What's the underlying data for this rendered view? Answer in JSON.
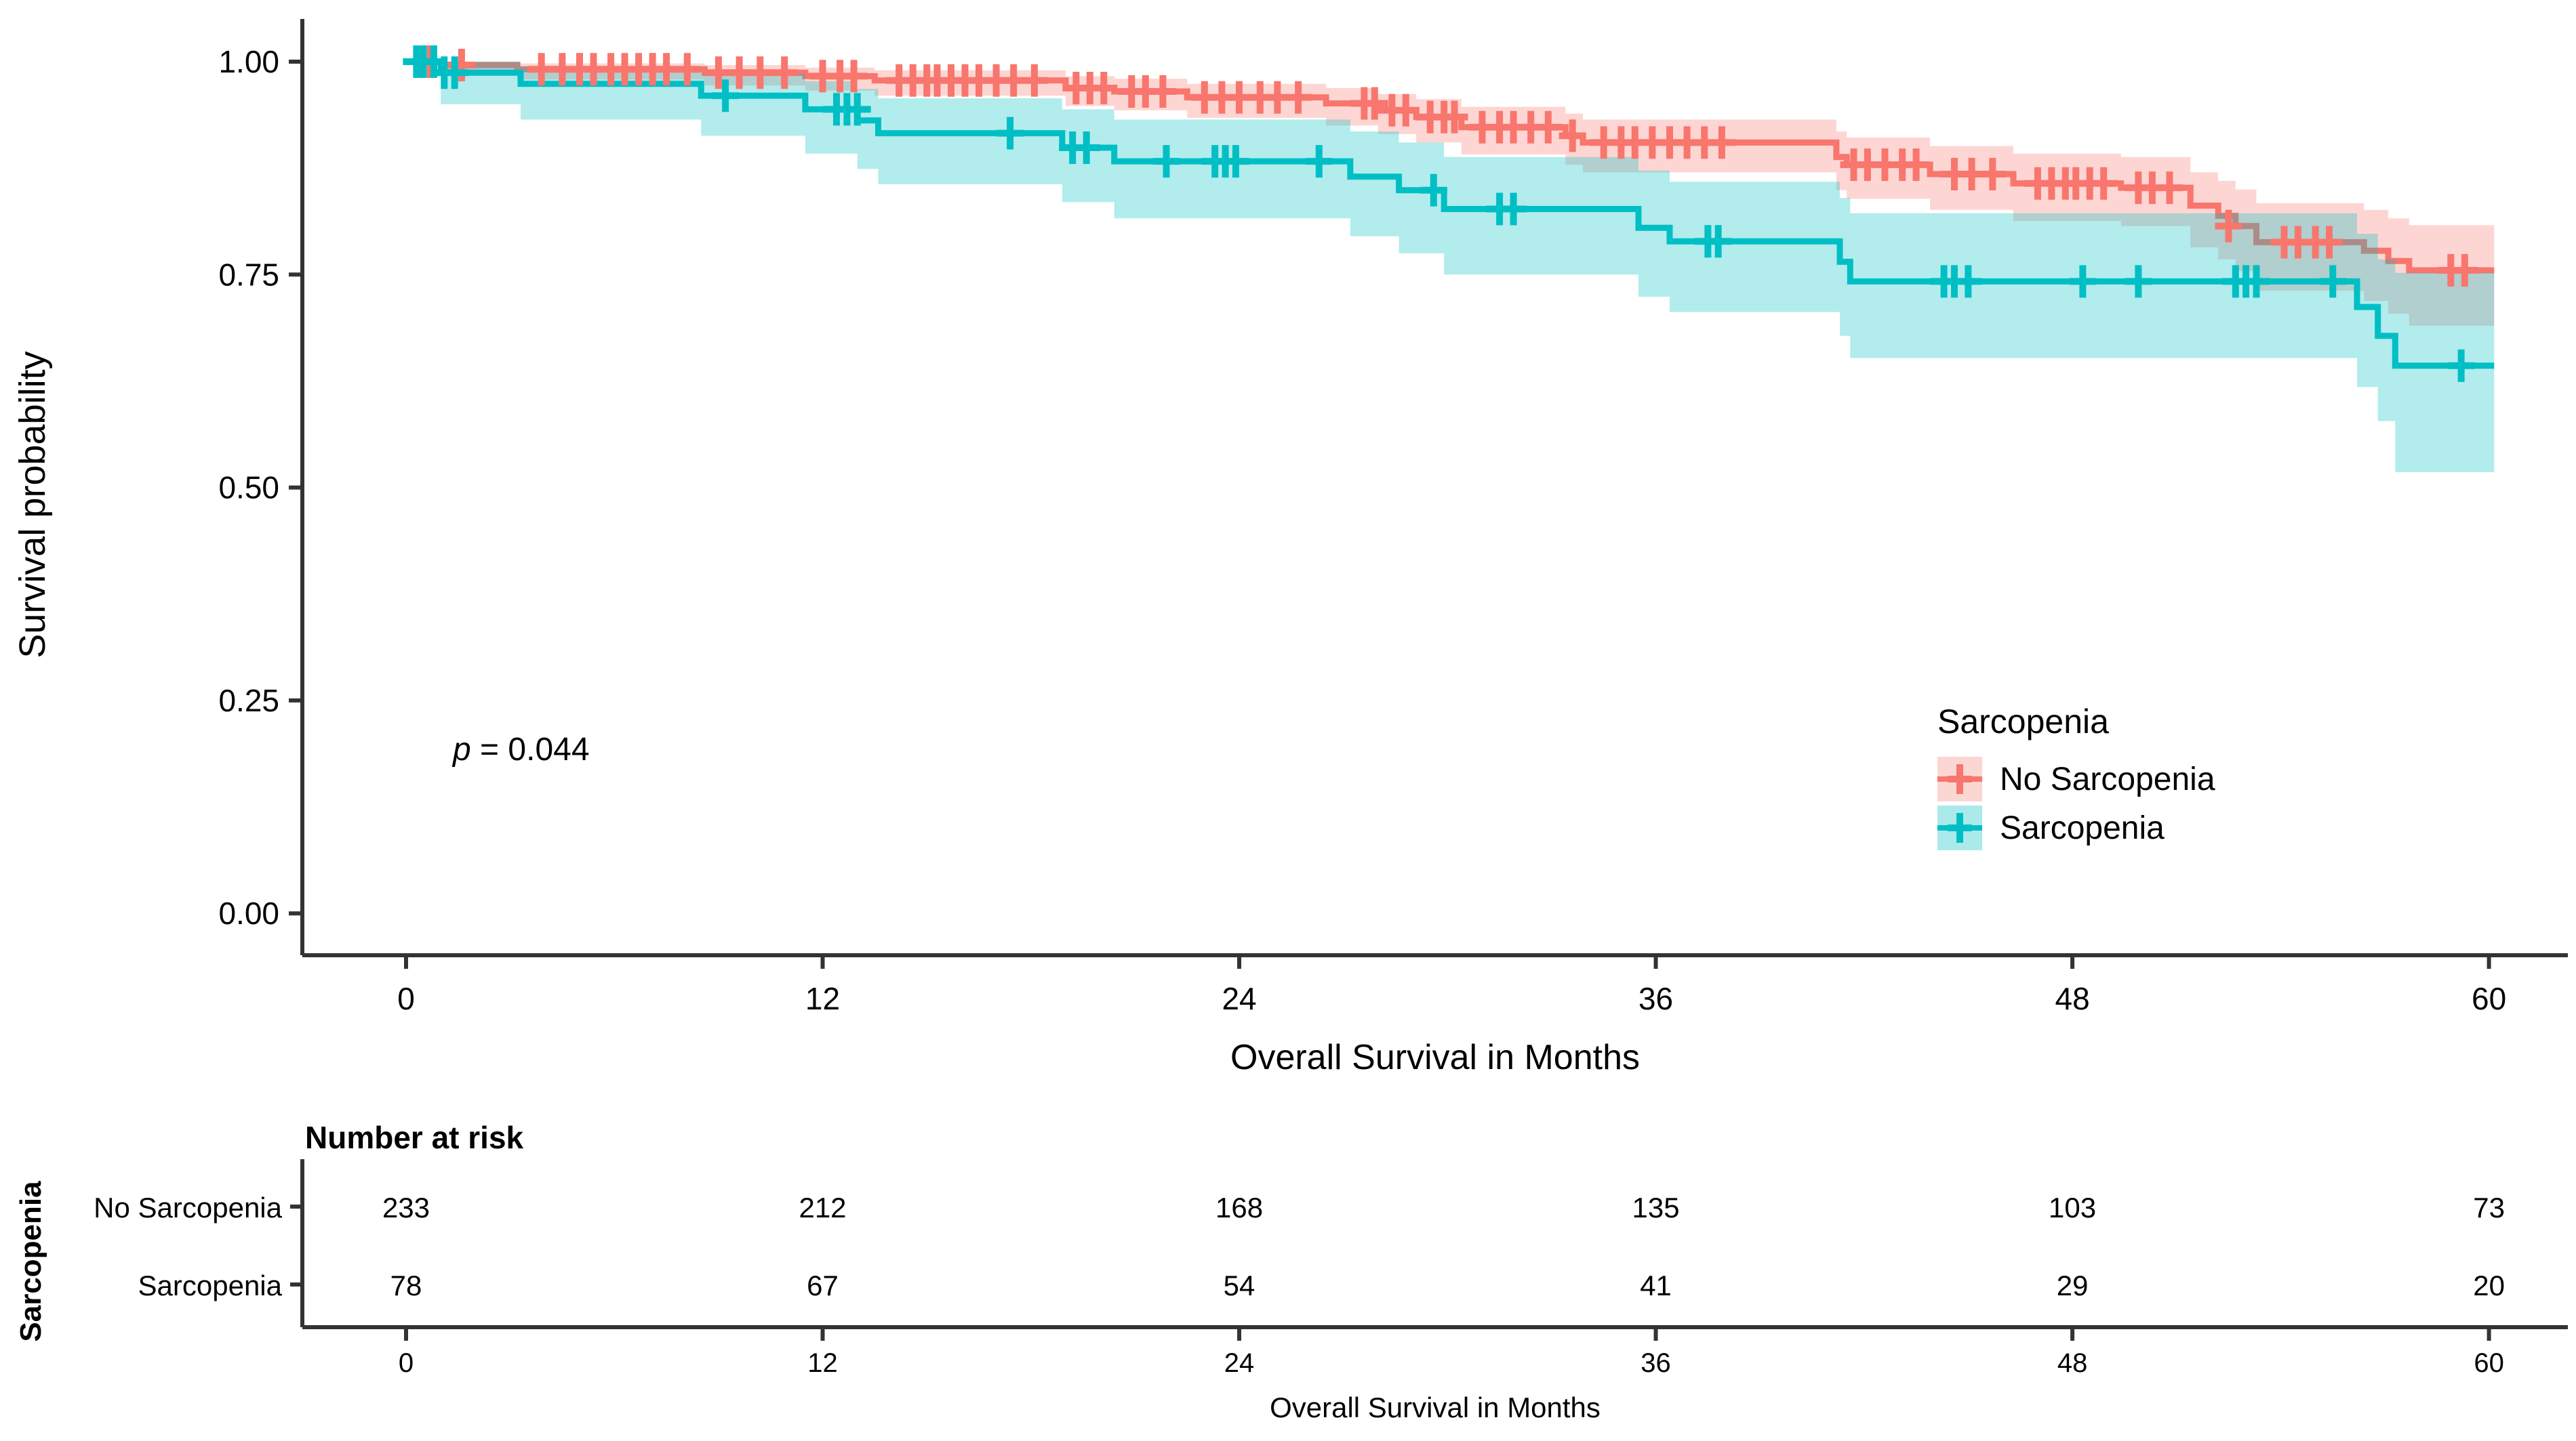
{
  "figure_type": "kaplan-meier-survival-plot",
  "colors": {
    "no_sarcopenia_line": "#F8766D",
    "sarcopenia_line": "#00BFC4",
    "no_sarcopenia_band_solid": "#FBD7D3",
    "sarcopenia_band_solid": "#ABEAEB",
    "band_opacity": 0.3,
    "axis": "#333333",
    "text": "#000000"
  },
  "chart_data": {
    "type": "line",
    "subtype": "kaplan_meier_step_with_confidence_bands",
    "title": "",
    "xlabel": "Overall Survival in Months",
    "ylabel": "Survival probability",
    "xlim": [
      0,
      60.15
    ],
    "ylim": [
      0,
      1
    ],
    "grid": false,
    "x_ticks": [
      "0",
      "12",
      "24",
      "36",
      "48",
      "60"
    ],
    "x_tick_values": [
      0,
      12,
      24,
      36,
      48,
      60
    ],
    "y_ticks": [
      "1.00",
      "0.75",
      "0.50",
      "0.25",
      "0.00"
    ],
    "y_tick_values": [
      1.0,
      0.75,
      0.5,
      0.25,
      0.0
    ],
    "p_value": {
      "prefix": "p",
      "rest": " = 0.044"
    },
    "legend": {
      "title": "Sarcopenia",
      "position": "inside-right",
      "entries": [
        {
          "label": "No Sarcopenia"
        },
        {
          "label": "Sarcopenia"
        }
      ]
    },
    "series": [
      {
        "name": "No Sarcopenia",
        "color": "#F8766D",
        "steps": [
          [
            0,
            1.0
          ],
          [
            1.0,
            0.996
          ],
          [
            3.2,
            0.991
          ],
          [
            8.6,
            0.987
          ],
          [
            11.5,
            0.983
          ],
          [
            13.5,
            0.978
          ],
          [
            19.0,
            0.969
          ],
          [
            20.4,
            0.965
          ],
          [
            22.5,
            0.958
          ],
          [
            26.5,
            0.951
          ],
          [
            28.0,
            0.943
          ],
          [
            29.1,
            0.935
          ],
          [
            30.4,
            0.923
          ],
          [
            33.4,
            0.913
          ],
          [
            33.9,
            0.905
          ],
          [
            41.2,
            0.888
          ],
          [
            41.5,
            0.879
          ],
          [
            43.9,
            0.868
          ],
          [
            46.3,
            0.857
          ],
          [
            49.4,
            0.852
          ],
          [
            51.4,
            0.831
          ],
          [
            52.2,
            0.819
          ],
          [
            52.7,
            0.807
          ],
          [
            53.3,
            0.788
          ],
          [
            56.4,
            0.778
          ],
          [
            57.1,
            0.766
          ],
          [
            57.7,
            0.755
          ]
        ],
        "censors": [
          [
            0.4,
            1.0
          ],
          [
            0.7,
            1.0
          ],
          [
            1.6,
            0.996
          ],
          [
            3.9,
            0.991
          ],
          [
            4.5,
            0.991
          ],
          [
            5.0,
            0.991
          ],
          [
            5.4,
            0.991
          ],
          [
            5.9,
            0.991
          ],
          [
            6.3,
            0.991
          ],
          [
            6.7,
            0.991
          ],
          [
            7.1,
            0.991
          ],
          [
            7.5,
            0.991
          ],
          [
            8.1,
            0.991
          ],
          [
            9.0,
            0.987
          ],
          [
            9.6,
            0.987
          ],
          [
            10.2,
            0.987
          ],
          [
            10.9,
            0.987
          ],
          [
            12.0,
            0.983
          ],
          [
            12.5,
            0.983
          ],
          [
            12.9,
            0.983
          ],
          [
            14.2,
            0.978
          ],
          [
            14.6,
            0.978
          ],
          [
            15.0,
            0.978
          ],
          [
            15.3,
            0.978
          ],
          [
            15.7,
            0.978
          ],
          [
            16.1,
            0.978
          ],
          [
            16.5,
            0.978
          ],
          [
            17.0,
            0.978
          ],
          [
            17.5,
            0.978
          ],
          [
            18.1,
            0.978
          ],
          [
            19.3,
            0.969
          ],
          [
            19.7,
            0.969
          ],
          [
            20.1,
            0.969
          ],
          [
            20.9,
            0.965
          ],
          [
            21.3,
            0.965
          ],
          [
            21.8,
            0.965
          ],
          [
            23.0,
            0.958
          ],
          [
            23.5,
            0.958
          ],
          [
            24.0,
            0.958
          ],
          [
            24.6,
            0.958
          ],
          [
            25.1,
            0.958
          ],
          [
            25.7,
            0.958
          ],
          [
            27.6,
            0.951
          ],
          [
            27.9,
            0.951
          ],
          [
            28.4,
            0.943
          ],
          [
            28.8,
            0.943
          ],
          [
            29.5,
            0.935
          ],
          [
            29.9,
            0.935
          ],
          [
            30.2,
            0.935
          ],
          [
            31.0,
            0.923
          ],
          [
            31.5,
            0.923
          ],
          [
            31.9,
            0.923
          ],
          [
            32.4,
            0.923
          ],
          [
            32.9,
            0.923
          ],
          [
            33.6,
            0.913
          ],
          [
            34.5,
            0.905
          ],
          [
            35.0,
            0.905
          ],
          [
            35.4,
            0.905
          ],
          [
            35.9,
            0.905
          ],
          [
            36.4,
            0.905
          ],
          [
            36.9,
            0.905
          ],
          [
            37.4,
            0.905
          ],
          [
            37.9,
            0.905
          ],
          [
            41.7,
            0.879
          ],
          [
            42.1,
            0.879
          ],
          [
            42.6,
            0.879
          ],
          [
            43.1,
            0.879
          ],
          [
            43.5,
            0.879
          ],
          [
            44.6,
            0.868
          ],
          [
            45.1,
            0.868
          ],
          [
            45.7,
            0.868
          ],
          [
            47.0,
            0.857
          ],
          [
            47.4,
            0.857
          ],
          [
            47.8,
            0.857
          ],
          [
            48.1,
            0.857
          ],
          [
            48.5,
            0.857
          ],
          [
            48.9,
            0.857
          ],
          [
            49.9,
            0.852
          ],
          [
            50.3,
            0.852
          ],
          [
            50.8,
            0.852
          ],
          [
            52.5,
            0.807
          ],
          [
            54.1,
            0.788
          ],
          [
            54.5,
            0.788
          ],
          [
            55.0,
            0.788
          ],
          [
            55.4,
            0.788
          ],
          [
            58.9,
            0.755
          ],
          [
            59.3,
            0.755
          ]
        ],
        "band": [
          [
            0,
            1.0,
            1.0
          ],
          [
            1.0,
            0.987,
            1.0
          ],
          [
            3.2,
            0.979,
            0.998
          ],
          [
            8.6,
            0.972,
            0.996
          ],
          [
            11.5,
            0.966,
            0.993
          ],
          [
            13.5,
            0.96,
            0.99
          ],
          [
            19.0,
            0.948,
            0.983
          ],
          [
            20.4,
            0.943,
            0.98
          ],
          [
            22.5,
            0.934,
            0.974
          ],
          [
            26.5,
            0.925,
            0.969
          ],
          [
            28.0,
            0.915,
            0.962
          ],
          [
            29.1,
            0.905,
            0.956
          ],
          [
            30.4,
            0.891,
            0.947
          ],
          [
            33.4,
            0.879,
            0.939
          ],
          [
            33.9,
            0.87,
            0.932
          ],
          [
            41.2,
            0.849,
            0.918
          ],
          [
            41.5,
            0.839,
            0.911
          ],
          [
            43.9,
            0.826,
            0.901
          ],
          [
            46.3,
            0.813,
            0.892
          ],
          [
            49.4,
            0.807,
            0.888
          ],
          [
            51.4,
            0.782,
            0.87
          ],
          [
            52.2,
            0.768,
            0.86
          ],
          [
            52.7,
            0.754,
            0.85
          ],
          [
            53.3,
            0.731,
            0.834
          ],
          [
            56.4,
            0.719,
            0.826
          ],
          [
            57.1,
            0.704,
            0.816
          ],
          [
            57.7,
            0.69,
            0.808
          ]
        ]
      },
      {
        "name": "Sarcopenia",
        "color": "#00BFC4",
        "steps": [
          [
            0,
            1.0
          ],
          [
            1.0,
            0.987
          ],
          [
            3.3,
            0.974
          ],
          [
            8.5,
            0.96
          ],
          [
            11.5,
            0.944
          ],
          [
            13.0,
            0.931
          ],
          [
            13.6,
            0.916
          ],
          [
            18.9,
            0.899
          ],
          [
            20.4,
            0.883
          ],
          [
            27.2,
            0.865
          ],
          [
            28.6,
            0.849
          ],
          [
            29.9,
            0.827
          ],
          [
            35.5,
            0.805
          ],
          [
            36.4,
            0.789
          ],
          [
            41.3,
            0.765
          ],
          [
            41.6,
            0.742
          ],
          [
            56.2,
            0.712
          ],
          [
            56.8,
            0.678
          ],
          [
            57.3,
            0.643
          ]
        ],
        "censors": [
          [
            0.3,
            1.0
          ],
          [
            0.5,
            1.0
          ],
          [
            0.8,
            1.0
          ],
          [
            1.1,
            0.987
          ],
          [
            1.4,
            0.987
          ],
          [
            9.2,
            0.96
          ],
          [
            12.4,
            0.944
          ],
          [
            12.7,
            0.944
          ],
          [
            13.0,
            0.944
          ],
          [
            17.4,
            0.916
          ],
          [
            19.2,
            0.899
          ],
          [
            19.6,
            0.899
          ],
          [
            21.9,
            0.883
          ],
          [
            23.3,
            0.883
          ],
          [
            23.6,
            0.883
          ],
          [
            23.9,
            0.883
          ],
          [
            26.3,
            0.883
          ],
          [
            29.6,
            0.849
          ],
          [
            31.5,
            0.827
          ],
          [
            31.9,
            0.827
          ],
          [
            37.5,
            0.789
          ],
          [
            37.8,
            0.789
          ],
          [
            44.3,
            0.742
          ],
          [
            44.6,
            0.742
          ],
          [
            45.0,
            0.742
          ],
          [
            48.3,
            0.742
          ],
          [
            49.9,
            0.742
          ],
          [
            52.7,
            0.742
          ],
          [
            53.0,
            0.742
          ],
          [
            53.3,
            0.742
          ],
          [
            55.5,
            0.742
          ],
          [
            59.2,
            0.643
          ]
        ],
        "band": [
          [
            0,
            1.0,
            1.0
          ],
          [
            1.0,
            0.95,
            1.0
          ],
          [
            3.3,
            0.932,
            0.994
          ],
          [
            8.5,
            0.913,
            0.986
          ],
          [
            11.5,
            0.892,
            0.977
          ],
          [
            13.0,
            0.874,
            0.968
          ],
          [
            13.6,
            0.856,
            0.957
          ],
          [
            18.9,
            0.835,
            0.944
          ],
          [
            20.4,
            0.816,
            0.932
          ],
          [
            27.2,
            0.795,
            0.918
          ],
          [
            28.6,
            0.775,
            0.905
          ],
          [
            29.9,
            0.75,
            0.888
          ],
          [
            35.5,
            0.724,
            0.872
          ],
          [
            36.4,
            0.706,
            0.859
          ],
          [
            41.3,
            0.678,
            0.84
          ],
          [
            41.6,
            0.652,
            0.822
          ],
          [
            56.2,
            0.618,
            0.798
          ],
          [
            56.8,
            0.578,
            0.768
          ],
          [
            57.3,
            0.518,
            0.752
          ]
        ]
      }
    ],
    "risk_table": {
      "title": "Number at risk",
      "ylabel": "Sarcopenia",
      "xlabel": "Overall Survival in Months",
      "x_ticks": [
        "0",
        "12",
        "24",
        "36",
        "48",
        "60"
      ],
      "x_tick_values": [
        0,
        12,
        24,
        36,
        48,
        60
      ],
      "rows": [
        {
          "label": "No Sarcopenia",
          "color": "#F8766D",
          "values": [
            "233",
            "212",
            "168",
            "135",
            "103",
            "73"
          ]
        },
        {
          "label": "Sarcopenia",
          "color": "#00BFC4",
          "values": [
            "78",
            "67",
            "54",
            "41",
            "29",
            "20"
          ]
        }
      ]
    }
  }
}
